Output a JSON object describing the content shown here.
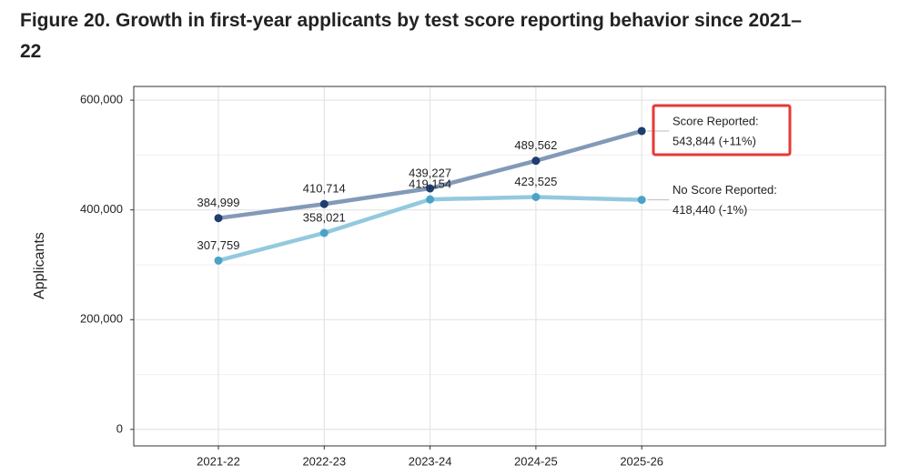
{
  "chart_data": {
    "type": "line",
    "title": "Figure 20. Growth in first-year applicants by test score reporting behavior since 2021–22",
    "y_label": "Applicants",
    "categories": [
      "2021-22",
      "2022-23",
      "2023-24",
      "2024-25",
      "2025-26"
    ],
    "series": [
      {
        "name": "Score Reported:",
        "color": "#8399b7",
        "point_color": "#1f3d6e",
        "values": [
          384999,
          410714,
          439227,
          489562,
          543844
        ],
        "value_labels": [
          "384,999",
          "410,714",
          "439,227",
          "489,562",
          null
        ],
        "end_note": "543,844 (+11%)",
        "highlight": true
      },
      {
        "name": "No Score Reported:",
        "color": "#93c9df",
        "point_color": "#4ba3c7",
        "values": [
          307759,
          358021,
          419154,
          423525,
          418440
        ],
        "value_labels": [
          "307,759",
          "358,021",
          "419,154",
          "423,525",
          null
        ],
        "end_note": "418,440 (-1%)",
        "highlight": false
      }
    ],
    "ylim": [
      -30000,
      625000
    ],
    "yticks": [
      0,
      {
        "value": 200000,
        "label": "200,000"
      },
      {
        "value": 400000,
        "label": "400,000"
      },
      {
        "value": 600000,
        "label": "600,000"
      }
    ],
    "grid": true
  }
}
